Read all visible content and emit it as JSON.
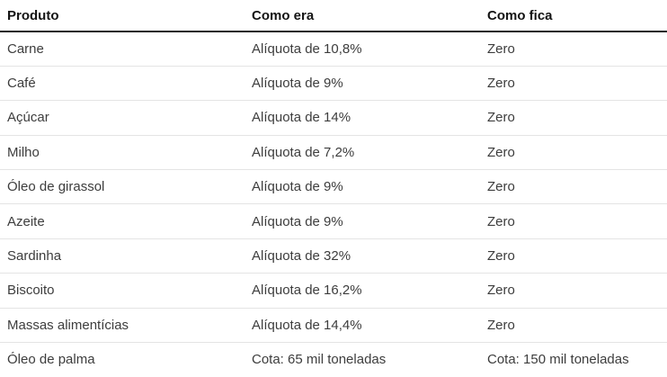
{
  "table": {
    "columns": [
      "Produto",
      "Como era",
      "Como fica"
    ],
    "rows": [
      [
        "Carne",
        "Alíquota de 10,8%",
        "Zero"
      ],
      [
        "Café",
        "Alíquota de 9%",
        "Zero"
      ],
      [
        "Açúcar",
        "Alíquota de 14%",
        "Zero"
      ],
      [
        "Milho",
        "Alíquota de 7,2%",
        "Zero"
      ],
      [
        "Óleo de girassol",
        "Alíquota de 9%",
        "Zero"
      ],
      [
        "Azeite",
        "Alíquota de 9%",
        "Zero"
      ],
      [
        "Sardinha",
        "Alíquota de 32%",
        "Zero"
      ],
      [
        "Biscoito",
        "Alíquota de 16,2%",
        "Zero"
      ],
      [
        "Massas alimentícias",
        "Alíquota de 14,4%",
        "Zero"
      ],
      [
        "Óleo de palma",
        "Cota: 65 mil toneladas",
        "Cota: 150 mil toneladas"
      ]
    ]
  },
  "chart_data": {
    "type": "table",
    "title": "",
    "columns": [
      "Produto",
      "Como era",
      "Como fica"
    ],
    "rows": [
      [
        "Carne",
        "Alíquota de 10,8%",
        "Zero"
      ],
      [
        "Café",
        "Alíquota de 9%",
        "Zero"
      ],
      [
        "Açúcar",
        "Alíquota de 14%",
        "Zero"
      ],
      [
        "Milho",
        "Alíquota de 7,2%",
        "Zero"
      ],
      [
        "Óleo de girassol",
        "Alíquota de 9%",
        "Zero"
      ],
      [
        "Azeite",
        "Alíquota de 9%",
        "Zero"
      ],
      [
        "Sardinha",
        "Alíquota de 32%",
        "Zero"
      ],
      [
        "Biscoito",
        "Alíquota de 16,2%",
        "Zero"
      ],
      [
        "Massas alimentícias",
        "Alíquota de 14,4%",
        "Zero"
      ],
      [
        "Óleo de palma",
        "Cota: 65 mil toneladas",
        "Cota: 150 mil toneladas"
      ]
    ]
  },
  "colors": {
    "background": "#ffffff",
    "header_text": "#141414",
    "body_text": "#3d3d3d",
    "header_rule": "#212121",
    "row_rule": "#e4e4e4"
  }
}
